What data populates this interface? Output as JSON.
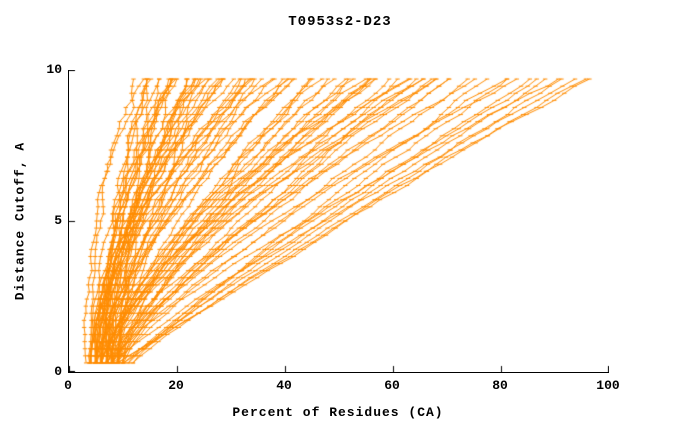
{
  "chart_data": {
    "type": "line",
    "title": "T0953s2-D23",
    "xlabel": "Percent of Residues (CA)",
    "ylabel": "Distance Cutoff, A",
    "xlim": [
      0,
      100
    ],
    "ylim": [
      0,
      10
    ],
    "xticks": [
      0,
      20,
      40,
      60,
      80,
      100
    ],
    "yticks": [
      0,
      5,
      10
    ],
    "grid": false,
    "legend": "none",
    "line_color": "#ff8c00",
    "axis_color": "#000000",
    "background": "#ffffff",
    "marker": "horizontal-dash",
    "sample": {
      "y_start": 0.3,
      "y_end": 9.7,
      "points": 40
    },
    "curve_format": [
      "x_percent_at_bottom",
      "x_percent_at_top",
      "shape_exponent"
    ],
    "curves": [
      [
        4,
        12,
        1.8
      ],
      [
        5,
        13,
        1.5
      ],
      [
        3,
        14,
        2.0
      ],
      [
        6,
        15,
        1.6
      ],
      [
        7,
        16,
        1.9
      ],
      [
        5,
        16,
        1.4
      ],
      [
        8,
        17,
        1.7
      ],
      [
        4,
        17,
        2.1
      ],
      [
        6,
        18,
        1.5
      ],
      [
        9,
        18,
        1.8
      ],
      [
        5,
        19,
        1.6
      ],
      [
        7,
        19,
        1.9
      ],
      [
        4,
        20,
        1.5
      ],
      [
        8,
        20,
        1.8
      ],
      [
        6,
        21,
        1.4
      ],
      [
        5,
        21,
        2.0
      ],
      [
        9,
        22,
        1.6
      ],
      [
        7,
        22,
        1.8
      ],
      [
        5,
        23,
        1.5
      ],
      [
        6,
        23,
        1.9
      ],
      [
        8,
        24,
        1.6
      ],
      [
        4,
        24,
        1.7
      ],
      [
        7,
        25,
        2.0
      ],
      [
        5,
        25,
        1.5
      ],
      [
        6,
        26,
        1.8
      ],
      [
        9,
        26,
        1.4
      ],
      [
        8,
        27,
        1.7
      ],
      [
        5,
        28,
        1.9
      ],
      [
        7,
        28,
        1.5
      ],
      [
        6,
        29,
        1.8
      ],
      [
        4,
        30,
        1.6
      ],
      [
        8,
        30,
        2.0
      ],
      [
        5,
        31,
        1.5
      ],
      [
        9,
        32,
        1.7
      ],
      [
        6,
        33,
        1.9
      ],
      [
        7,
        33,
        1.4
      ],
      [
        5,
        34,
        1.8
      ],
      [
        8,
        35,
        1.6
      ],
      [
        6,
        36,
        1.5
      ],
      [
        4,
        36,
        1.9
      ],
      [
        9,
        37,
        1.7
      ],
      [
        7,
        38,
        1.5
      ],
      [
        5,
        39,
        1.8
      ],
      [
        6,
        40,
        1.6
      ],
      [
        8,
        40,
        1.4
      ],
      [
        6,
        42,
        1.5
      ],
      [
        8,
        43,
        1.3
      ],
      [
        5,
        44,
        1.6
      ],
      [
        9,
        45,
        1.2
      ],
      [
        7,
        46,
        1.4
      ],
      [
        10,
        47,
        1.5
      ],
      [
        6,
        48,
        1.3
      ],
      [
        8,
        50,
        1.6
      ],
      [
        5,
        51,
        1.2
      ],
      [
        9,
        52,
        1.4
      ],
      [
        7,
        53,
        1.5
      ],
      [
        10,
        54,
        1.3
      ],
      [
        6,
        55,
        1.4
      ],
      [
        8,
        56,
        1.2
      ],
      [
        5,
        57,
        1.5
      ],
      [
        9,
        58,
        1.3
      ],
      [
        7,
        59,
        1.4
      ],
      [
        10,
        60,
        1.2
      ],
      [
        6,
        61,
        1.5
      ],
      [
        8,
        62,
        1.3
      ],
      [
        5,
        63,
        1.4
      ],
      [
        9,
        64,
        1.2
      ],
      [
        7,
        65,
        1.5
      ],
      [
        10,
        66,
        1.3
      ],
      [
        6,
        67,
        1.4
      ],
      [
        8,
        68,
        1.2
      ],
      [
        7,
        69,
        1.5
      ],
      [
        9,
        70,
        1.3
      ],
      [
        7,
        72,
        1.2
      ],
      [
        9,
        74,
        1.1
      ],
      [
        6,
        76,
        1.3
      ],
      [
        10,
        78,
        1.0
      ],
      [
        8,
        80,
        1.2
      ],
      [
        11,
        82,
        1.1
      ],
      [
        7,
        84,
        1.3
      ],
      [
        9,
        85,
        1.0
      ],
      [
        12,
        86,
        1.2
      ],
      [
        8,
        88,
        1.1
      ],
      [
        10,
        90,
        1.0
      ],
      [
        7,
        91,
        1.2
      ],
      [
        11,
        93,
        1.1
      ],
      [
        9,
        95,
        1.0
      ],
      [
        12,
        98,
        1.1
      ]
    ]
  }
}
